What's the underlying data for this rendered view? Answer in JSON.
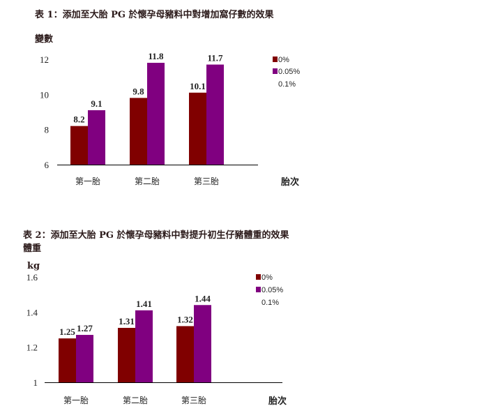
{
  "chart_data": [
    {
      "type": "bar",
      "title": "表 1：添加至大胎 PG 於懷孕母豬料中對增加窩仔數的效果",
      "ylabel": "變數",
      "xlabel": "胎次",
      "categories": [
        "第一胎",
        "第二胎",
        "第三胎"
      ],
      "series": [
        {
          "name": "0%",
          "values": [
            8.2,
            9.8,
            10.1
          ],
          "color": "#800000"
        },
        {
          "name": "0.05%",
          "values": [
            9.1,
            11.8,
            11.7
          ],
          "color": "#800080"
        },
        {
          "name": "0.1%",
          "values": [
            null,
            null,
            null
          ],
          "color": "#ffffff"
        }
      ],
      "ylim": [
        6,
        12
      ],
      "yticks": [
        "12",
        "10",
        "8",
        "6"
      ],
      "legend_position": "right",
      "grid": false
    },
    {
      "type": "bar",
      "title": "表 2：添加至大胎 PG 於懷孕母豬料中對提升初生仔豬體重的效果",
      "ylabel": "體重",
      "yunit": "kg",
      "xlabel": "胎次",
      "categories": [
        "第一胎",
        "第二胎",
        "第三胎"
      ],
      "series": [
        {
          "name": "0%",
          "values": [
            1.25,
            1.31,
            1.32
          ],
          "color": "#800000"
        },
        {
          "name": "0.05%",
          "values": [
            1.27,
            1.41,
            1.44
          ],
          "color": "#800080"
        },
        {
          "name": "0.1%",
          "values": [
            null,
            null,
            null
          ],
          "color": "#ffffff"
        }
      ],
      "ylim": [
        1,
        1.6
      ],
      "yticks": [
        "1.6",
        "1.4",
        "1.2",
        "1"
      ],
      "legend_position": "right",
      "grid": false
    }
  ]
}
